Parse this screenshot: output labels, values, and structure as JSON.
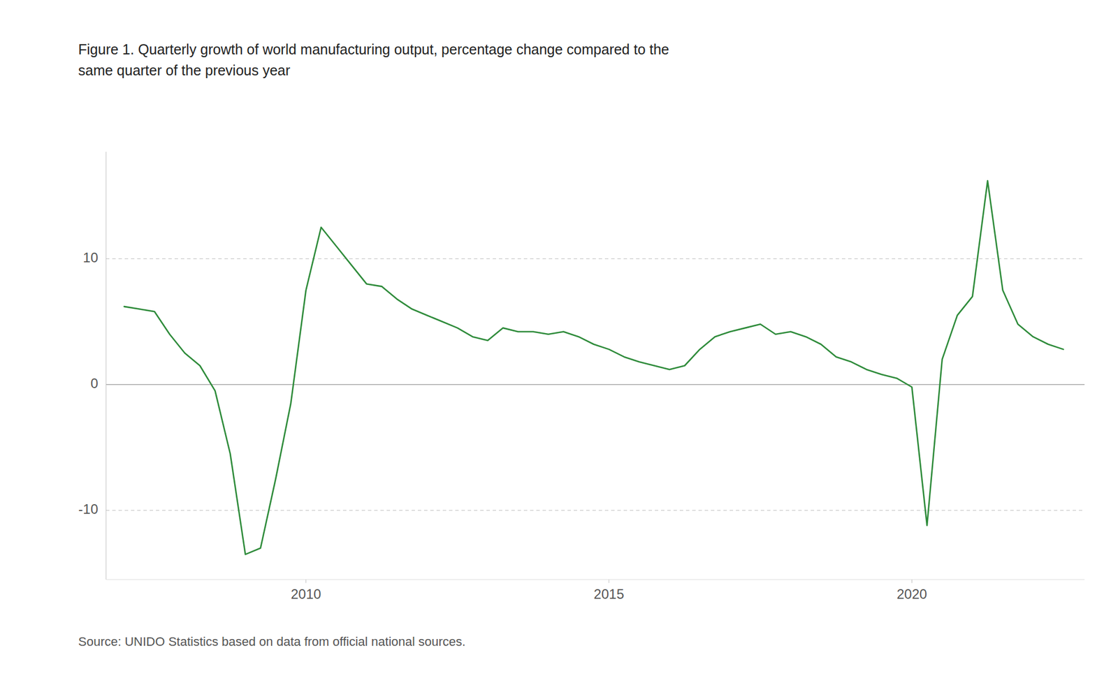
{
  "chart_data": {
    "type": "line",
    "title": "Figure 1. Quarterly growth of world manufacturing output, percentage change compared to the\nsame quarter of the previous year",
    "annotations": [
      "Source: UNIDO Statistics based on data from official national sources."
    ],
    "color": "#2e8b3a",
    "grid": true,
    "x": [
      2007.0,
      2007.25,
      2007.5,
      2007.75,
      2008.0,
      2008.25,
      2008.5,
      2008.75,
      2009.0,
      2009.25,
      2009.5,
      2009.75,
      2010.0,
      2010.25,
      2010.5,
      2010.75,
      2011.0,
      2011.25,
      2011.5,
      2011.75,
      2012.0,
      2012.25,
      2012.5,
      2012.75,
      2013.0,
      2013.25,
      2013.5,
      2013.75,
      2014.0,
      2014.25,
      2014.5,
      2014.75,
      2015.0,
      2015.25,
      2015.5,
      2015.75,
      2016.0,
      2016.25,
      2016.5,
      2016.75,
      2017.0,
      2017.25,
      2017.5,
      2017.75,
      2018.0,
      2018.25,
      2018.5,
      2018.75,
      2019.0,
      2019.25,
      2019.5,
      2019.75,
      2020.0,
      2020.25,
      2020.5,
      2020.75,
      2021.0,
      2021.25,
      2021.5,
      2021.75,
      2022.0,
      2022.25,
      2022.5
    ],
    "values": [
      6.2,
      6.0,
      5.8,
      4.0,
      2.5,
      1.5,
      -0.5,
      -5.5,
      -13.5,
      -13.0,
      -7.5,
      -1.5,
      7.5,
      12.5,
      11.0,
      9.5,
      8.0,
      7.8,
      6.8,
      6.0,
      5.5,
      5.0,
      4.5,
      3.8,
      3.5,
      4.5,
      4.2,
      4.2,
      4.0,
      4.2,
      3.8,
      3.2,
      2.8,
      2.2,
      1.8,
      1.5,
      1.2,
      1.5,
      2.8,
      3.8,
      4.2,
      4.5,
      4.8,
      4.0,
      4.2,
      3.8,
      3.2,
      2.2,
      1.8,
      1.2,
      0.8,
      0.5,
      -0.2,
      -11.2,
      2.0,
      5.5,
      7.0,
      16.2,
      7.5,
      4.8,
      3.8,
      3.2,
      2.8
    ],
    "xlim": [
      2006.7,
      2022.85
    ],
    "xticks": [
      2010,
      2015,
      2020
    ],
    "ylim": [
      -15.5,
      18.5
    ],
    "yticks": [
      -10,
      0,
      10
    ]
  }
}
